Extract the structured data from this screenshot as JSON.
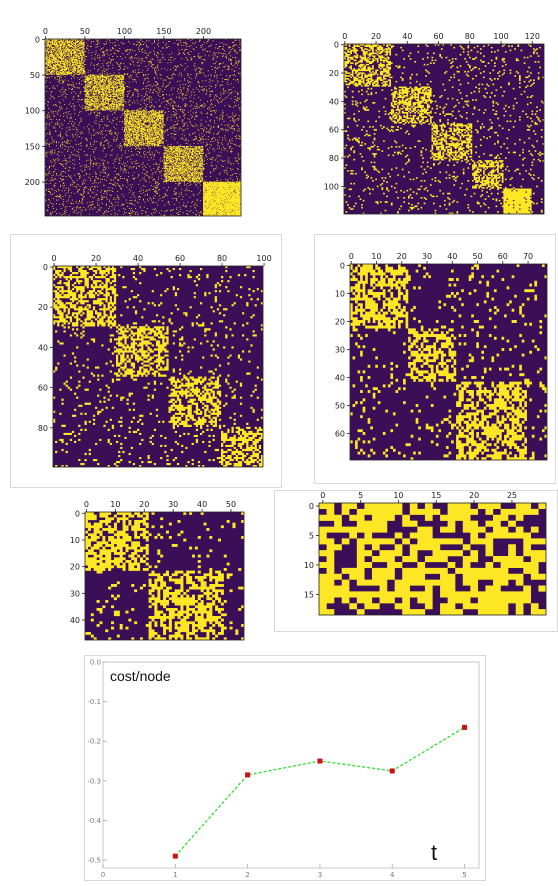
{
  "colors": {
    "background": "#3b0f58",
    "foreground": "#fde725",
    "line": "#33dd33",
    "marker": "#cc1111"
  },
  "heatmaps": [
    {
      "id": "h1",
      "n": 248,
      "cols": 248,
      "blocks": [
        50,
        50,
        50,
        50,
        48
      ],
      "p_in": 0.55,
      "p_out": 0.06,
      "last_in": 0.92,
      "seed": 11,
      "xticks": [
        "0",
        "50",
        "100",
        "150",
        "200"
      ],
      "xtick_vals": [
        0,
        50,
        100,
        150,
        200
      ],
      "yticks": [
        "0",
        "50",
        "100",
        "150",
        "200"
      ],
      "ytick_vals": [
        0,
        50,
        100,
        150,
        200
      ]
    },
    {
      "id": "h2",
      "n": 120,
      "cols": 128,
      "blocks": [
        30,
        26,
        26,
        20,
        18
      ],
      "p_in": 0.55,
      "p_out": 0.07,
      "last_in": 0.93,
      "seed": 23,
      "xticks": [
        "0",
        "20",
        "40",
        "60",
        "80",
        "100",
        "120"
      ],
      "xtick_vals": [
        0,
        20,
        40,
        60,
        80,
        100,
        120
      ],
      "yticks": [
        "0",
        "20",
        "40",
        "60",
        "80",
        "100"
      ],
      "ytick_vals": [
        0,
        20,
        40,
        60,
        80,
        100
      ]
    },
    {
      "id": "h3",
      "n": 100,
      "cols": 100,
      "blocks": [
        30,
        25,
        25,
        20
      ],
      "p_in": 0.58,
      "p_out": 0.07,
      "last_in": 0.58,
      "seed": 37,
      "xticks": [
        "0",
        "20",
        "40",
        "60",
        "80",
        "100"
      ],
      "xtick_vals": [
        0,
        20,
        40,
        60,
        80,
        100
      ],
      "yticks": [
        "0",
        "20",
        "40",
        "60",
        "80"
      ],
      "ytick_vals": [
        0,
        20,
        40,
        60,
        80
      ]
    },
    {
      "id": "h4",
      "n": 70,
      "cols": 78,
      "blocks": [
        23,
        19,
        28
      ],
      "p_in": 0.6,
      "p_out": 0.08,
      "last_in": 0.6,
      "seed": 41,
      "xticks": [
        "0",
        "10",
        "20",
        "30",
        "40",
        "50",
        "60",
        "70"
      ],
      "xtick_vals": [
        0,
        10,
        20,
        30,
        40,
        50,
        60,
        70
      ],
      "yticks": [
        "0",
        "10",
        "20",
        "30",
        "40",
        "50",
        "60"
      ],
      "ytick_vals": [
        0,
        10,
        20,
        30,
        40,
        50,
        60
      ]
    },
    {
      "id": "h5",
      "n": 48,
      "cols": 55,
      "blocks": [
        22,
        26
      ],
      "p_in": 0.62,
      "p_out": 0.08,
      "last_in": 0.62,
      "seed": 53,
      "xticks": [
        "0",
        "10",
        "20",
        "30",
        "40",
        "50"
      ],
      "xtick_vals": [
        0,
        10,
        20,
        30,
        40,
        50
      ],
      "yticks": [
        "0",
        "10",
        "20",
        "30",
        "40"
      ],
      "ytick_vals": [
        0,
        10,
        20,
        30,
        40
      ]
    },
    {
      "id": "h6",
      "n": 19,
      "cols": 30,
      "blocks": [],
      "p_in": 0.6,
      "p_out": 0.6,
      "last_in": 0.6,
      "seed": 67,
      "xticks": [
        "0",
        "5",
        "10",
        "15",
        "20",
        "25"
      ],
      "xtick_vals": [
        0,
        5,
        10,
        15,
        20,
        25
      ],
      "yticks": [
        "0",
        "5",
        "10",
        "15"
      ],
      "ytick_vals": [
        0,
        5,
        10,
        15
      ]
    }
  ],
  "chart_data": {
    "type": "line",
    "ylabel": "cost/node",
    "xlabel": "t",
    "x": [
      1,
      2,
      3,
      4,
      5
    ],
    "values": [
      -0.49,
      -0.285,
      -0.25,
      -0.275,
      -0.165
    ],
    "xlim": [
      0,
      5.2
    ],
    "ylim": [
      -0.52,
      0.0
    ],
    "xticks": [
      "0",
      "1",
      "2",
      "3",
      "4",
      "5"
    ],
    "yticks": [
      "0.0",
      "-0.1",
      "-0.2",
      "-0.3",
      "-0.4",
      "-0.5"
    ],
    "ytick_vals": [
      0.0,
      -0.1,
      -0.2,
      -0.3,
      -0.4,
      -0.5
    ],
    "grid": false
  }
}
